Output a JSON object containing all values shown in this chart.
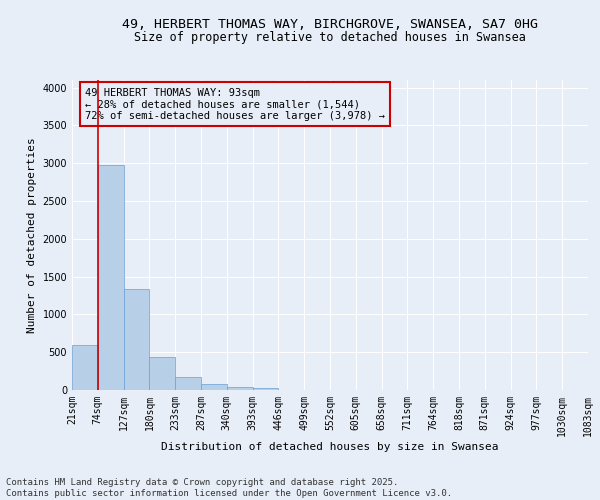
{
  "title_line1": "49, HERBERT THOMAS WAY, BIRCHGROVE, SWANSEA, SA7 0HG",
  "title_line2": "Size of property relative to detached houses in Swansea",
  "xlabel": "Distribution of detached houses by size in Swansea",
  "ylabel": "Number of detached properties",
  "footer_line1": "Contains HM Land Registry data © Crown copyright and database right 2025.",
  "footer_line2": "Contains public sector information licensed under the Open Government Licence v3.0.",
  "annotation_line1": "49 HERBERT THOMAS WAY: 93sqm",
  "annotation_line2": "← 28% of detached houses are smaller (1,544)",
  "annotation_line3": "72% of semi-detached houses are larger (3,978) →",
  "bar_values": [
    600,
    2970,
    1335,
    440,
    175,
    80,
    40,
    30,
    0,
    0,
    0,
    0,
    0,
    0,
    0,
    0,
    0,
    0,
    0,
    0
  ],
  "bar_labels": [
    "21sqm",
    "74sqm",
    "127sqm",
    "180sqm",
    "233sqm",
    "287sqm",
    "340sqm",
    "393sqm",
    "446sqm",
    "499sqm",
    "552sqm",
    "605sqm",
    "658sqm",
    "711sqm",
    "764sqm",
    "818sqm",
    "871sqm",
    "924sqm",
    "977sqm",
    "1030sqm",
    "1083sqm"
  ],
  "bar_color": "#b8cfe8",
  "bar_edge_color": "#6a9fd8",
  "vline_color": "#cc0000",
  "ylim": [
    0,
    4100
  ],
  "yticks": [
    0,
    500,
    1000,
    1500,
    2000,
    2500,
    3000,
    3500,
    4000
  ],
  "bg_color": "#e8eef8",
  "grid_color": "#ffffff",
  "annotation_box_color": "#cc0000",
  "title_fontsize": 9.5,
  "subtitle_fontsize": 8.5,
  "axis_label_fontsize": 8,
  "tick_fontsize": 7,
  "footer_fontsize": 6.5,
  "annotation_fontsize": 7.5
}
